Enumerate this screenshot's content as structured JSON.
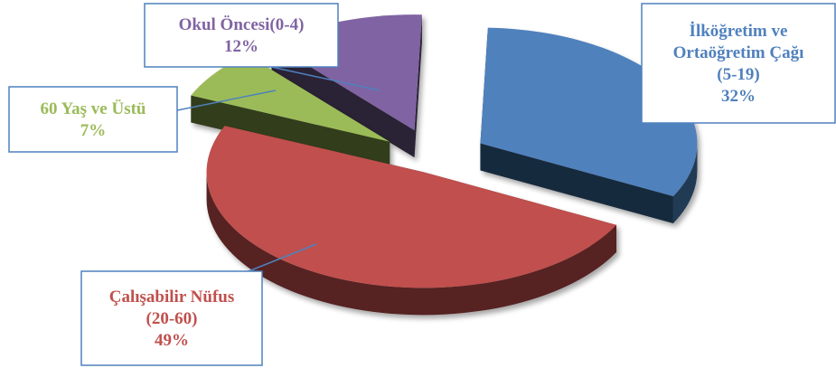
{
  "chart_data": {
    "type": "pie",
    "variant": "3d-exploded",
    "title": "",
    "slices": [
      {
        "label_lines": [
          "İlköğretim ve",
          "Ortaöğretim Çağı",
          "(5-19)"
        ],
        "value": 32,
        "value_label": "32%",
        "color": "#4f81bd"
      },
      {
        "label_lines": [
          "Çalışabilir Nüfus",
          "(20-60)"
        ],
        "value": 49,
        "value_label": "49%",
        "color": "#c0504d"
      },
      {
        "label_lines": [
          "60 Yaş ve Üstü"
        ],
        "value": 7,
        "value_label": "7%",
        "color": "#9bbb59"
      },
      {
        "label_lines": [
          "Okul Öncesi(0-4)"
        ],
        "value": 12,
        "value_label": "12%",
        "color": "#8064a2"
      }
    ]
  }
}
